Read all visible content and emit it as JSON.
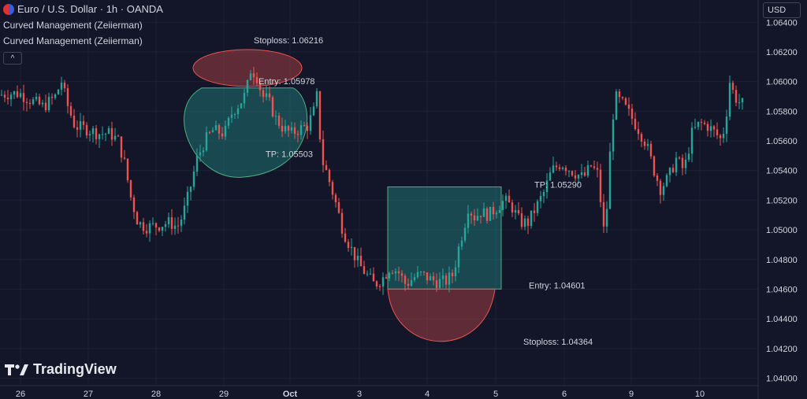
{
  "header": {
    "symbol_line": "Euro / U.S. Dollar · 1h · OANDA",
    "indicators": [
      "Curved Management (Zeiierman)",
      "Curved Management (Zeiierman)"
    ],
    "collapse_glyph": "^"
  },
  "currency_button": "USD",
  "brand": "TradingView",
  "colors": {
    "background": "#131629",
    "up": "#26a69a",
    "down": "#ef5350",
    "grid": "#1c2033",
    "text": "#d1d4dc"
  },
  "chart_data": {
    "type": "candlestick",
    "instrument": "Euro / U.S. Dollar",
    "timeframe": "1h",
    "y_axis": {
      "ticks": [
        "1.06400",
        "1.06200",
        "1.06000",
        "1.05800",
        "1.05600",
        "1.05400",
        "1.05200",
        "1.05000",
        "1.04800",
        "1.04600",
        "1.04400",
        "1.04200",
        "1.04000"
      ],
      "range": [
        1.0395,
        1.0655
      ]
    },
    "x_axis": {
      "ticks": [
        {
          "label": "26",
          "bold": false
        },
        {
          "label": "27",
          "bold": false
        },
        {
          "label": "28",
          "bold": false
        },
        {
          "label": "29",
          "bold": false
        },
        {
          "label": "Oct",
          "bold": true
        },
        {
          "label": "3",
          "bold": false
        },
        {
          "label": "4",
          "bold": false
        },
        {
          "label": "5",
          "bold": false
        },
        {
          "label": "6",
          "bold": false
        },
        {
          "label": "9",
          "bold": false
        },
        {
          "label": "10",
          "bold": false
        }
      ]
    },
    "price_path": [
      [
        0,
        1.0591
      ],
      [
        12,
        1.0592
      ],
      [
        25,
        1.0592
      ],
      [
        40,
        1.0587
      ],
      [
        55,
        1.0583
      ],
      [
        70,
        1.059
      ],
      [
        78,
        1.06
      ],
      [
        85,
        1.0585
      ],
      [
        95,
        1.057
      ],
      [
        110,
        1.0568
      ],
      [
        125,
        1.0565
      ],
      [
        140,
        1.0565
      ],
      [
        150,
        1.056
      ],
      [
        158,
        1.0545
      ],
      [
        166,
        1.0522
      ],
      [
        175,
        1.0505
      ],
      [
        185,
        1.0502
      ],
      [
        200,
        1.0503
      ],
      [
        215,
        1.0505
      ],
      [
        225,
        1.0502
      ],
      [
        232,
        1.051
      ],
      [
        240,
        1.0525
      ],
      [
        250,
        1.0548
      ],
      [
        260,
        1.056
      ],
      [
        270,
        1.0567
      ],
      [
        285,
        1.0565
      ],
      [
        295,
        1.058
      ],
      [
        305,
        1.0586
      ],
      [
        312,
        1.0592
      ],
      [
        318,
        1.0608
      ],
      [
        325,
        1.0605
      ],
      [
        333,
        1.059
      ],
      [
        340,
        1.0588
      ],
      [
        350,
        1.0575
      ],
      [
        360,
        1.0568
      ],
      [
        370,
        1.0565
      ],
      [
        380,
        1.0568
      ],
      [
        390,
        1.057
      ],
      [
        398,
        1.058
      ],
      [
        402,
        1.059
      ],
      [
        405,
        1.0568
      ],
      [
        410,
        1.0545
      ],
      [
        415,
        1.0538
      ],
      [
        425,
        1.052
      ],
      [
        435,
        1.05
      ],
      [
        445,
        1.0488
      ],
      [
        455,
        1.0477
      ],
      [
        465,
        1.047
      ],
      [
        475,
        1.0463
      ],
      [
        485,
        1.0467
      ],
      [
        495,
        1.0475
      ],
      [
        505,
        1.0472
      ],
      [
        515,
        1.0463
      ],
      [
        525,
        1.0468
      ],
      [
        535,
        1.047
      ],
      [
        545,
        1.0467
      ],
      [
        555,
        1.0465
      ],
      [
        565,
        1.0465
      ],
      [
        575,
        1.047
      ],
      [
        582,
        1.0488
      ],
      [
        590,
        1.0505
      ],
      [
        595,
        1.0518
      ],
      [
        600,
        1.0508
      ],
      [
        610,
        1.0512
      ],
      [
        620,
        1.051
      ],
      [
        630,
        1.0515
      ],
      [
        640,
        1.052
      ],
      [
        650,
        1.0515
      ],
      [
        660,
        1.0505
      ],
      [
        670,
        1.0505
      ],
      [
        680,
        1.0515
      ],
      [
        690,
        1.0525
      ],
      [
        700,
        1.054
      ],
      [
        712,
        1.0545
      ],
      [
        725,
        1.054
      ],
      [
        740,
        1.0535
      ],
      [
        750,
        1.0543
      ],
      [
        758,
        1.0538
      ],
      [
        762,
        1.052
      ],
      [
        766,
        1.05
      ],
      [
        770,
        1.0515
      ],
      [
        775,
        1.056
      ],
      [
        780,
        1.059
      ],
      [
        790,
        1.0585
      ],
      [
        800,
        1.0577
      ],
      [
        810,
        1.0568
      ],
      [
        820,
        1.0558
      ],
      [
        830,
        1.054
      ],
      [
        838,
        1.0528
      ],
      [
        848,
        1.0535
      ],
      [
        858,
        1.0548
      ],
      [
        868,
        1.054
      ],
      [
        878,
        1.0565
      ],
      [
        888,
        1.0572
      ],
      [
        898,
        1.057
      ],
      [
        908,
        1.0565
      ],
      [
        916,
        1.056
      ],
      [
        922,
        1.058
      ],
      [
        926,
        1.06
      ],
      [
        932,
        1.059
      ],
      [
        940,
        1.0585
      ]
    ],
    "trades": [
      {
        "name": "short",
        "start": 238,
        "end": 392,
        "stoploss": {
          "label": "Stoploss: 1.06216",
          "price": 1.06216
        },
        "entry": {
          "label": "Entry: 1.05978",
          "price": 1.05978
        },
        "tp": {
          "label": "TP: 1.05503",
          "price": 1.05503
        }
      },
      {
        "name": "long",
        "start": 492,
        "end": 636,
        "tp": {
          "label": "TP: 1.05290",
          "price": 1.0529
        },
        "entry": {
          "label": "Entry: 1.04601",
          "price": 1.04601
        },
        "stoploss": {
          "label": "Stoploss: 1.04364",
          "price": 1.04364
        }
      }
    ]
  }
}
